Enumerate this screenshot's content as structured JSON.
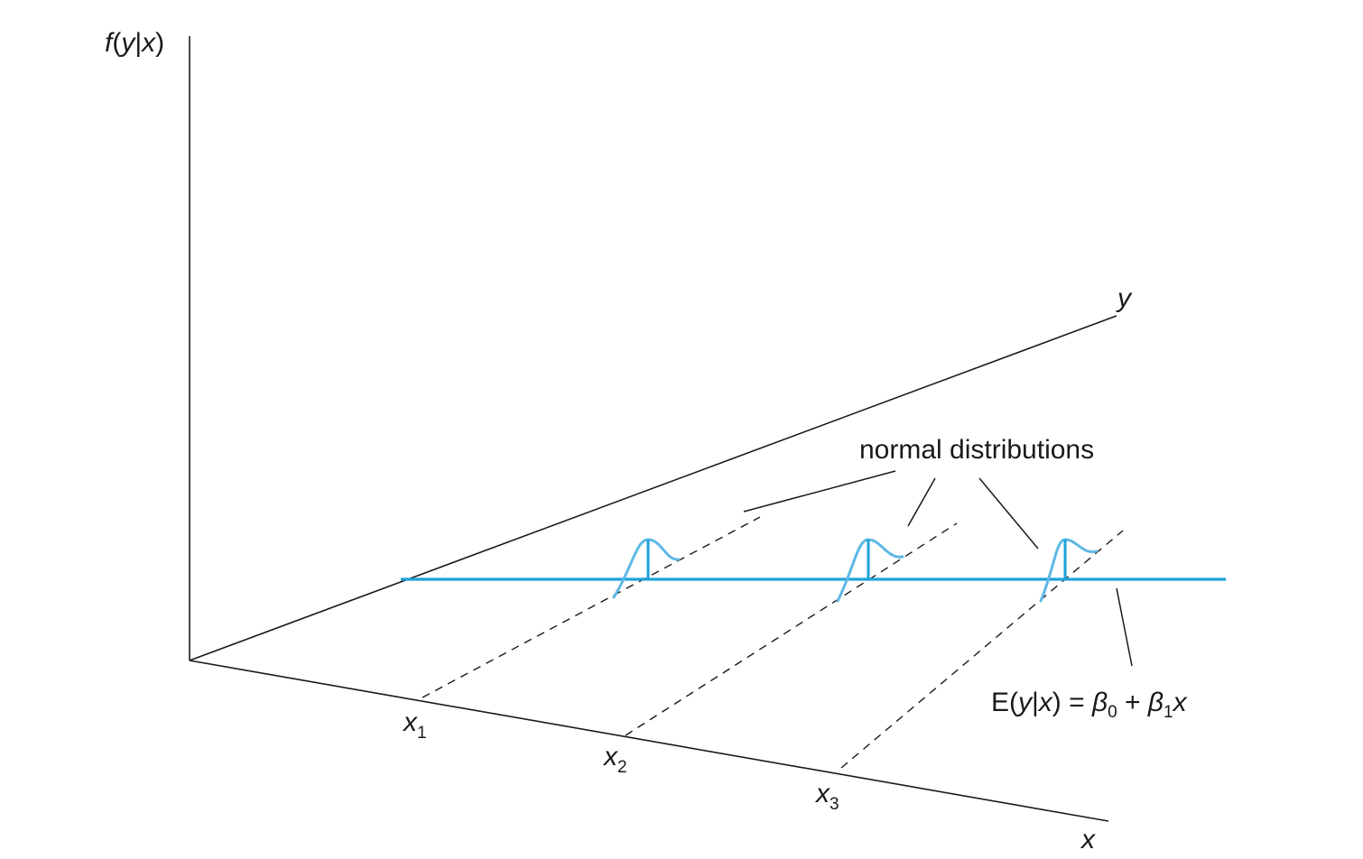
{
  "axes": {
    "vertical_label": {
      "f": "f",
      "open": "(",
      "y": "y",
      "bar": "|",
      "x": "x",
      "close": ")"
    },
    "y_label": "y",
    "x_label": "x"
  },
  "x_ticks": [
    {
      "base": "x",
      "sub": "1"
    },
    {
      "base": "x",
      "sub": "2"
    },
    {
      "base": "x",
      "sub": "3"
    }
  ],
  "annotations": {
    "normal_distributions": "normal distributions",
    "regression_equation": {
      "E": "E(",
      "y": "y",
      "bar": "|",
      "x": "x",
      "close_eq": ") = ",
      "beta0": "β",
      "beta0_sub": "0",
      "plus": " + ",
      "beta1": "β",
      "beta1_sub": "1",
      "x_tail": "x"
    }
  },
  "colors": {
    "regression_line": "#1ea2d8",
    "distribution_curve": "#5db8e6",
    "axes": "#1a1a1a"
  }
}
